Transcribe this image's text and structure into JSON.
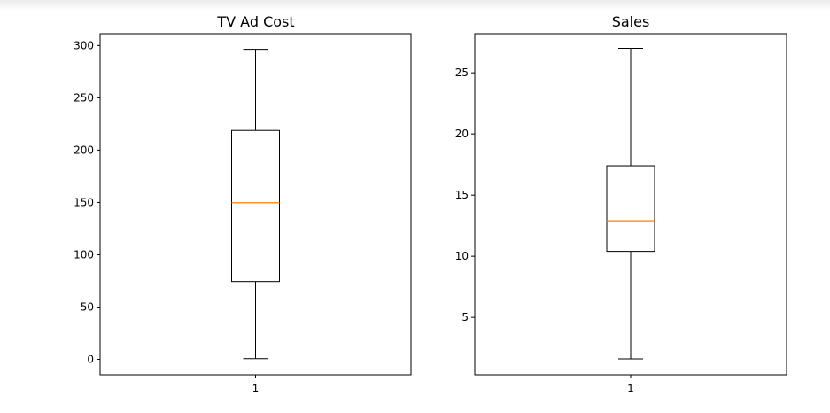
{
  "chart_data": [
    {
      "type": "box",
      "title": "TV Ad Cost",
      "xlabel": "",
      "ylabel": "",
      "categories": [
        "1"
      ],
      "ylim": [
        -14.8,
        311.3
      ],
      "yticks": [
        0,
        50,
        100,
        150,
        200,
        250,
        300
      ],
      "ytick_labels": [
        "0",
        "50",
        "100",
        "150",
        "200",
        "250",
        "300"
      ],
      "boxes": [
        {
          "category": "1",
          "whisker_low": 0.7,
          "q1": 74.4,
          "median": 149.75,
          "q3": 218.8,
          "whisker_high": 296.4
        }
      ],
      "grid": false
    },
    {
      "type": "box",
      "title": "Sales",
      "xlabel": "",
      "ylabel": "",
      "categories": [
        "1"
      ],
      "ylim": [
        0.3,
        28.2
      ],
      "yticks": [
        5,
        10,
        15,
        20,
        25
      ],
      "ytick_labels": [
        "5",
        "10",
        "15",
        "20",
        "25"
      ],
      "boxes": [
        {
          "category": "1",
          "whisker_low": 1.6,
          "q1": 10.4,
          "median": 12.9,
          "q3": 17.4,
          "whisker_high": 27.0
        }
      ],
      "grid": false
    }
  ],
  "colors": {
    "box": "#000000",
    "median": "#ff7f0e"
  }
}
